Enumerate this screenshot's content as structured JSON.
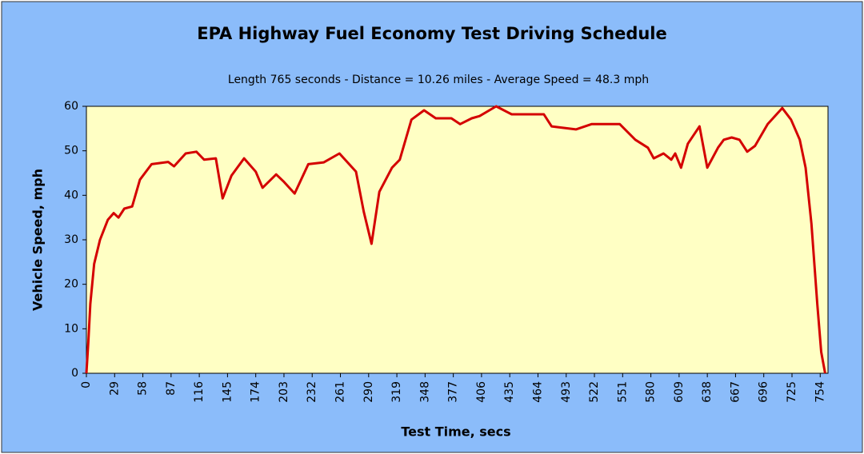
{
  "chart_data": {
    "type": "line",
    "title": "EPA Highway Fuel Economy Test Driving Schedule",
    "subtitle": "Length 765 seconds - Distance = 10.26 miles - Average Speed = 48.3 mph",
    "x_label": "Test Time, secs",
    "y_label": "Vehicle Speed, mph",
    "x": [
      0,
      2,
      4,
      8,
      14,
      22,
      28,
      33,
      39,
      47,
      55,
      67,
      84,
      90,
      102,
      113,
      121,
      133,
      140,
      149,
      162,
      174,
      181,
      195,
      203,
      214,
      228,
      244,
      260,
      277,
      285,
      293,
      301,
      314,
      322,
      334,
      347,
      359,
      375,
      384,
      396,
      404,
      421,
      437,
      470,
      478,
      503,
      519,
      548,
      564,
      577,
      583,
      593,
      601,
      605,
      611,
      618,
      630,
      638,
      649,
      655,
      663,
      671,
      679,
      687,
      700,
      715,
      724,
      733,
      739,
      745,
      751,
      755,
      759
    ],
    "values": [
      0,
      7,
      15.6,
      24.6,
      30,
      34.5,
      36,
      35,
      37,
      37.5,
      43.5,
      47,
      47.5,
      46.5,
      49.4,
      49.8,
      48,
      48.3,
      39.3,
      44.4,
      48.3,
      45.3,
      41.7,
      44.7,
      43,
      40.4,
      47,
      47.4,
      49.4,
      45.3,
      36.3,
      29.1,
      40.8,
      46.2,
      48,
      57,
      59.1,
      57.3,
      57.3,
      56,
      57.3,
      57.8,
      60,
      58.2,
      58.2,
      55.5,
      54.8,
      56,
      56,
      52.5,
      50.7,
      48.3,
      49.4,
      48,
      49.4,
      46.2,
      51.6,
      55.5,
      46.2,
      50.7,
      52.5,
      53,
      52.5,
      49.8,
      51.1,
      56,
      59.6,
      57,
      52.5,
      46.2,
      33.6,
      15.6,
      4.8,
      0
    ],
    "color": "#d40000",
    "xlim": [
      0,
      762
    ],
    "xticks": [
      0,
      29,
      58,
      87,
      116,
      145,
      174,
      203,
      232,
      261,
      290,
      319,
      348,
      377,
      406,
      435,
      464,
      493,
      522,
      551,
      580,
      609,
      638,
      667,
      696,
      725,
      754
    ],
    "ylim": [
      0,
      60
    ],
    "yticks": [
      0,
      10,
      20,
      30,
      40,
      50,
      60
    ],
    "grid": false
  }
}
